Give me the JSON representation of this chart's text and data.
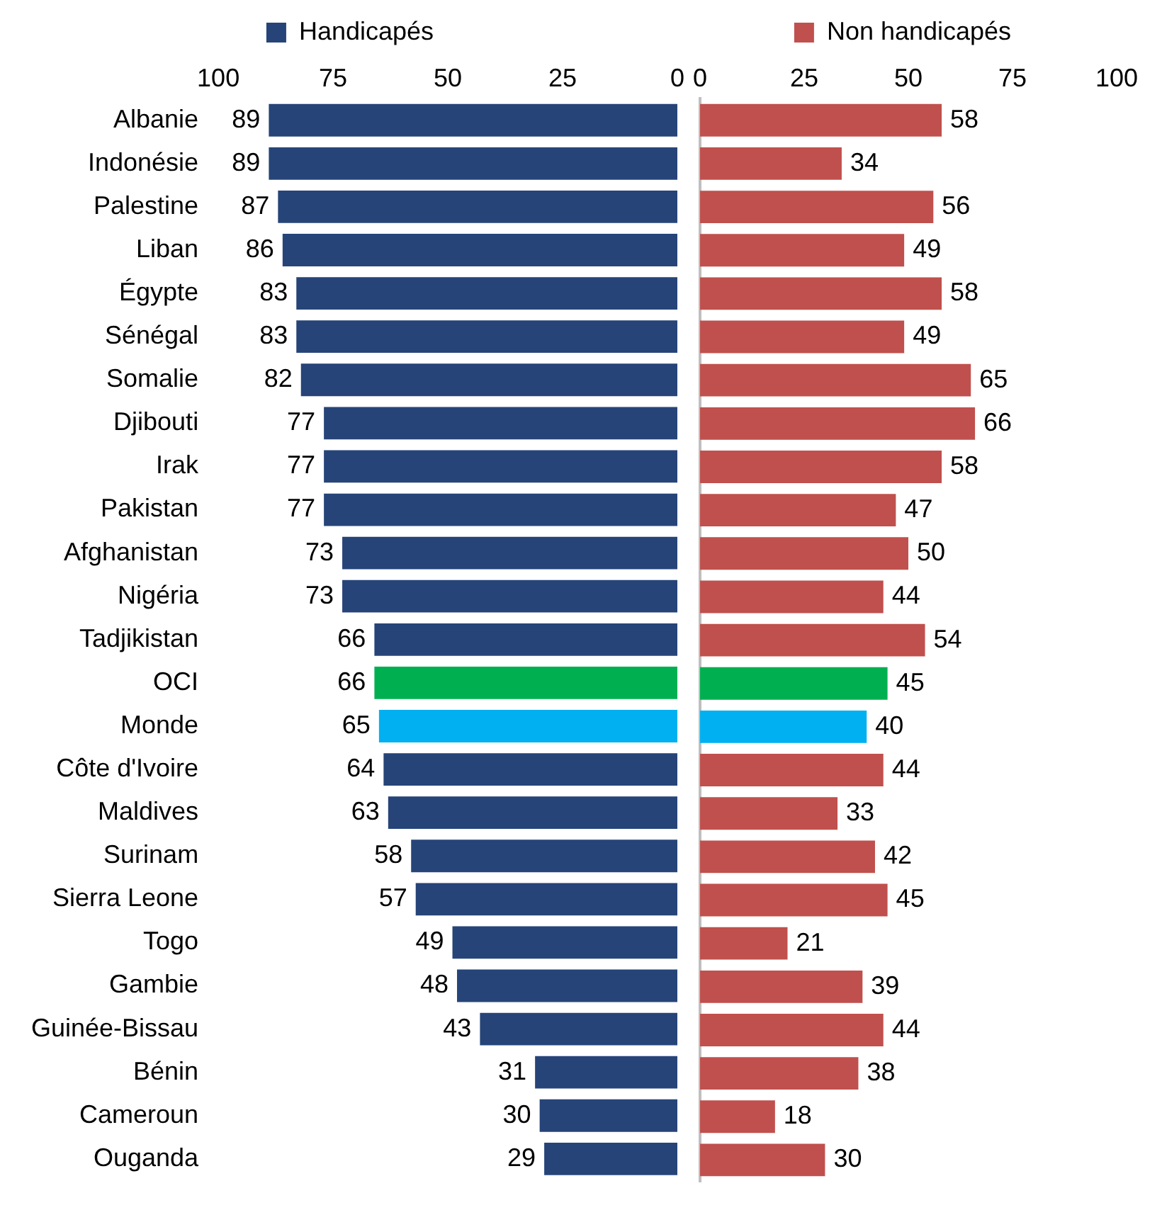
{
  "chart_data": [
    {
      "type": "bar",
      "orientation": "horizontal",
      "categories": [
        "Albanie",
        "Indonésie",
        "Palestine",
        "Liban",
        "Égypte",
        "Sénégal",
        "Somalie",
        "Djibouti",
        "Irak",
        "Pakistan",
        "Afghanistan",
        "Nigéria",
        "Tadjikistan",
        "OCI",
        "Monde",
        "Côte d'Ivoire",
        "Maldives",
        "Surinam",
        "Sierra Leone",
        "Togo",
        "Gambie",
        "Guinée-Bissau",
        "Bénin",
        "Cameroun",
        "Ouganda"
      ],
      "series": [
        {
          "name": "Handicapés",
          "color": "#264478",
          "colors": [
            "#264478",
            "#264478",
            "#264478",
            "#264478",
            "#264478",
            "#264478",
            "#264478",
            "#264478",
            "#264478",
            "#264478",
            "#264478",
            "#264478",
            "#264478",
            "#00b050",
            "#00b0f0",
            "#264478",
            "#264478",
            "#264478",
            "#264478",
            "#264478",
            "#264478",
            "#264478",
            "#264478",
            "#264478",
            "#264478"
          ],
          "values": [
            89,
            89,
            87,
            86,
            83,
            83,
            82,
            77,
            77,
            77,
            73,
            73,
            66,
            66,
            65,
            64,
            63,
            58,
            57,
            49,
            48,
            43,
            31,
            30,
            29
          ]
        }
      ],
      "xlim": [
        100,
        0
      ],
      "xticks": [
        100,
        75,
        50,
        25,
        0
      ],
      "data_labels": true,
      "legend": "top",
      "grid": false
    },
    {
      "type": "bar",
      "orientation": "horizontal",
      "categories": [
        null,
        null,
        null,
        null,
        null,
        null,
        null,
        null,
        null,
        null,
        null,
        null,
        null,
        null,
        null,
        null,
        null,
        null,
        null,
        null,
        null,
        null,
        null,
        null,
        null
      ],
      "series": [
        {
          "name": "Non handicapés",
          "color": "#c0504d",
          "colors": [
            "#c0504d",
            "#c0504d",
            "#c0504d",
            "#c0504d",
            "#c0504d",
            "#c0504d",
            "#c0504d",
            "#c0504d",
            "#c0504d",
            "#c0504d",
            "#c0504d",
            "#c0504d",
            "#c0504d",
            "#00b050",
            "#00b0f0",
            "#c0504d",
            "#c0504d",
            "#c0504d",
            "#c0504d",
            "#c0504d",
            "#c0504d",
            "#c0504d",
            "#c0504d",
            "#c0504d",
            "#c0504d"
          ],
          "values": [
            58,
            34,
            56,
            49,
            58,
            49,
            65,
            66,
            58,
            47,
            50,
            44,
            54,
            45,
            40,
            44,
            33,
            42,
            45,
            21,
            39,
            44,
            38,
            18,
            30
          ]
        }
      ],
      "xlim": [
        0,
        100
      ],
      "xticks": [
        0,
        25,
        50,
        75,
        100
      ],
      "data_labels": true,
      "legend": "top",
      "grid": false,
      "tick_labels": "x"
    }
  ]
}
